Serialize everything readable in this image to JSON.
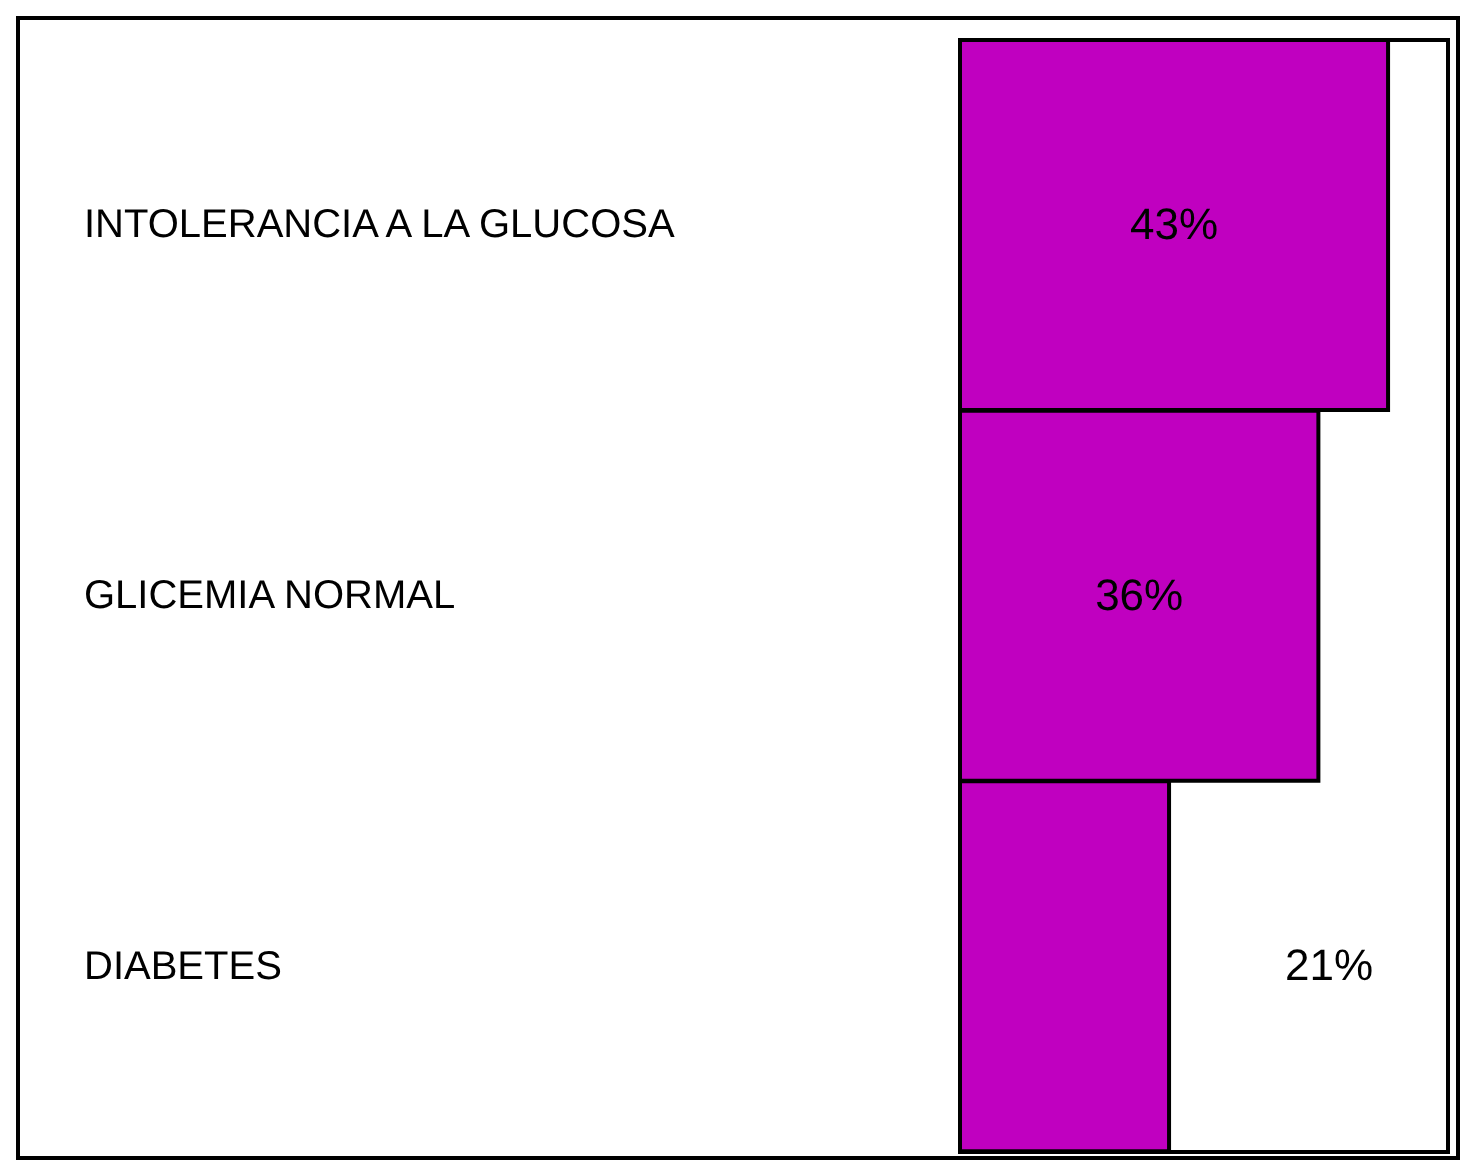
{
  "chart_data": {
    "type": "bar",
    "orientation": "horizontal",
    "categories": [
      "INTOLERANCIA A LA GLUCOSA",
      "GLICEMIA NORMAL",
      "DIABETES"
    ],
    "values": [
      43,
      36,
      21
    ],
    "value_labels": [
      "43%",
      "36%",
      "21%"
    ],
    "color": "#c000c0"
  }
}
